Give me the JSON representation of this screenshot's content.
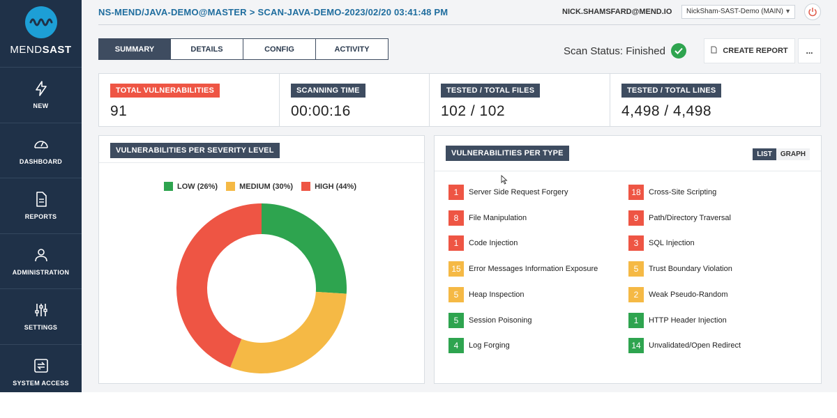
{
  "sidebar": {
    "brand_part1": "MEND",
    "brand_part2": "SAST",
    "items": [
      {
        "label": "NEW",
        "icon": "lightning-icon"
      },
      {
        "label": "DASHBOARD",
        "icon": "gauge-icon"
      },
      {
        "label": "REPORTS",
        "icon": "document-icon"
      },
      {
        "label": "ADMINISTRATION",
        "icon": "user-icon"
      },
      {
        "label": "SETTINGS",
        "icon": "sliders-icon"
      },
      {
        "label": "SYSTEM ACCESS",
        "icon": "swap-icon"
      }
    ]
  },
  "header": {
    "breadcrumb_project": "NS-MEND/JAVA-DEMO@MASTER",
    "breadcrumb_sep": ">",
    "breadcrumb_scan": "SCAN-JAVA-DEMO-2023/02/20 03:41:48 PM",
    "user_email": "NICK.SHAMSFARD@MEND.IO",
    "org_selected": "NickSham-SAST-Demo (MAIN)"
  },
  "tabs": [
    "SUMMARY",
    "DETAILS",
    "CONFIG",
    "ACTIVITY"
  ],
  "scan_status": "Scan Status: Finished",
  "actions": {
    "create_report": "CREATE REPORT",
    "more": "..."
  },
  "stats": [
    {
      "label": "TOTAL VULNERABILITIES",
      "value": "91"
    },
    {
      "label": "SCANNING TIME",
      "value": "00:00:16"
    },
    {
      "label": "TESTED / TOTAL FILES",
      "value": "102 / 102"
    },
    {
      "label": "TESTED / TOTAL LINES",
      "value": "4,498 / 4,498"
    }
  ],
  "severity_panel": {
    "title": "VULNERABILITIES PER SEVERITY LEVEL",
    "legend": [
      {
        "label": "LOW (26%)",
        "color": "#2ea44f"
      },
      {
        "label": "MEDIUM (30%)",
        "color": "#f5b945"
      },
      {
        "label": "HIGH (44%)",
        "color": "#ee5544"
      }
    ]
  },
  "chart_data": {
    "type": "pie",
    "categories": [
      "LOW",
      "MEDIUM",
      "HIGH"
    ],
    "values": [
      26,
      30,
      44
    ],
    "colors": [
      "#2ea44f",
      "#f5b945",
      "#ee5544"
    ],
    "legend_position": "top"
  },
  "type_panel": {
    "title": "VULNERABILITIES PER TYPE",
    "view_list": "LIST",
    "view_graph": "GRAPH",
    "items": [
      {
        "count": "1",
        "name": "Server Side Request Forgery",
        "severity": "high"
      },
      {
        "count": "18",
        "name": "Cross-Site Scripting",
        "severity": "high"
      },
      {
        "count": "8",
        "name": "File Manipulation",
        "severity": "high"
      },
      {
        "count": "9",
        "name": "Path/Directory Traversal",
        "severity": "high"
      },
      {
        "count": "1",
        "name": "Code Injection",
        "severity": "high"
      },
      {
        "count": "3",
        "name": "SQL Injection",
        "severity": "high"
      },
      {
        "count": "15",
        "name": "Error Messages Information Exposure",
        "severity": "med"
      },
      {
        "count": "5",
        "name": "Trust Boundary Violation",
        "severity": "med"
      },
      {
        "count": "5",
        "name": "Heap Inspection",
        "severity": "med"
      },
      {
        "count": "2",
        "name": "Weak Pseudo-Random",
        "severity": "med"
      },
      {
        "count": "5",
        "name": "Session Poisoning",
        "severity": "low"
      },
      {
        "count": "1",
        "name": "HTTP Header Injection",
        "severity": "low"
      },
      {
        "count": "4",
        "name": "Log Forging",
        "severity": "low"
      },
      {
        "count": "14",
        "name": "Unvalidated/Open Redirect",
        "severity": "low"
      }
    ]
  }
}
